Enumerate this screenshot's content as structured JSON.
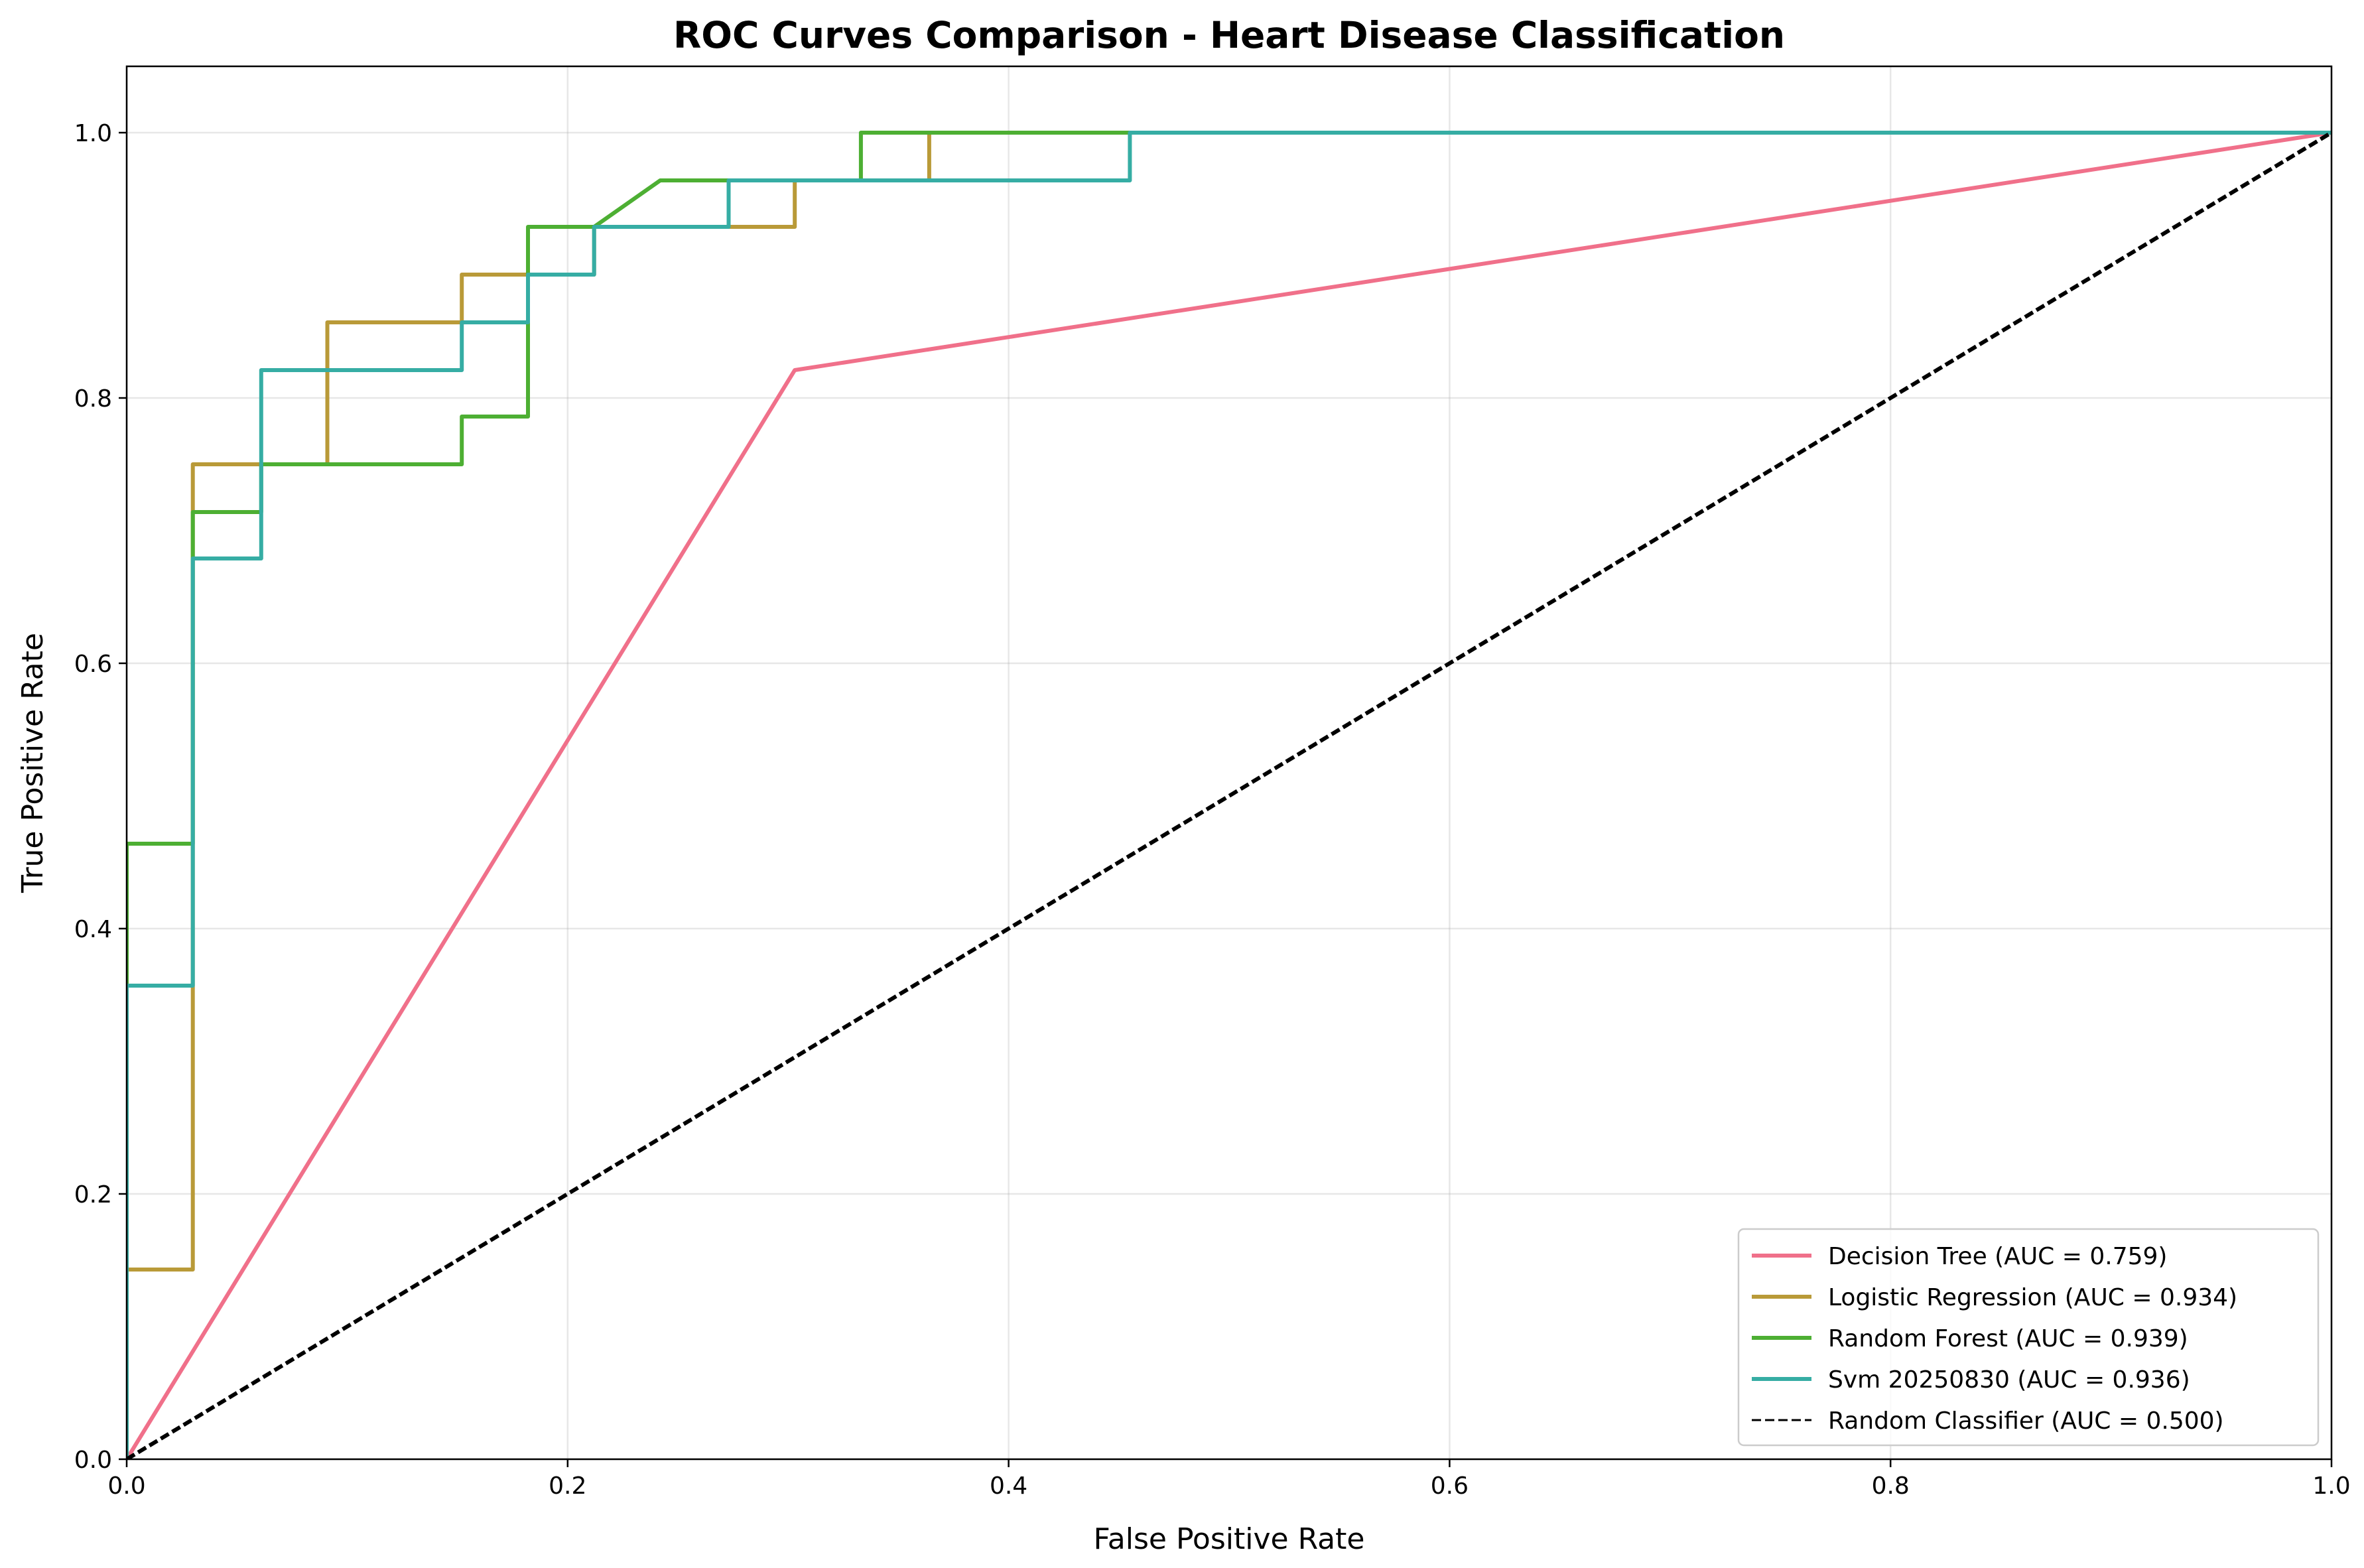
{
  "chart_data": {
    "type": "line",
    "title": "ROC Curves Comparison - Heart Disease Classification",
    "xlabel": "False Positive Rate",
    "ylabel": "True Positive Rate",
    "xlim": [
      0,
      1
    ],
    "ylim": [
      0,
      1.05
    ],
    "xticks": [
      0,
      0.2,
      0.4,
      0.6,
      0.8,
      1.0
    ],
    "xtick_labels": [
      "0.0",
      "0.2",
      "0.4",
      "0.6",
      "0.8",
      "1.0"
    ],
    "yticks": [
      0,
      0.2,
      0.4,
      0.6,
      0.8,
      1.0
    ],
    "ytick_labels": [
      "0.0",
      "0.2",
      "0.4",
      "0.6",
      "0.8",
      "1.0"
    ],
    "grid": true,
    "legend_position": "lower-right",
    "series": [
      {
        "name": "Decision Tree (AUC = 0.759)",
        "color": "#f0708a",
        "style": "solid",
        "x": [
          0,
          0.303,
          1.0
        ],
        "y": [
          0,
          0.821,
          1.0
        ]
      },
      {
        "name": "Logistic Regression (AUC = 0.934)",
        "color": "#b99a38",
        "style": "solid",
        "x": [
          0,
          0,
          0.03,
          0.03,
          0.03,
          0.091,
          0.091,
          0.152,
          0.152,
          0.182,
          0.182,
          0.212,
          0.212,
          0.273,
          0.273,
          0.303,
          0.303,
          0.364,
          0.364,
          1.0
        ],
        "y": [
          0,
          0.143,
          0.143,
          0.357,
          0.75,
          0.75,
          0.857,
          0.857,
          0.893,
          0.893,
          0.893,
          0.893,
          0.929,
          0.929,
          0.929,
          0.929,
          0.964,
          0.964,
          1.0,
          1.0
        ]
      },
      {
        "name": "Random Forest (AUC = 0.939)",
        "color": "#4daf33",
        "style": "solid",
        "x": [
          0,
          0,
          0.03,
          0.03,
          0.061,
          0.061,
          0.152,
          0.152,
          0.182,
          0.182,
          0.212,
          0.242,
          0.333,
          0.333,
          1.0
        ],
        "y": [
          0,
          0.464,
          0.464,
          0.714,
          0.714,
          0.75,
          0.75,
          0.786,
          0.786,
          0.929,
          0.929,
          0.964,
          0.964,
          1.0,
          1.0
        ]
      },
      {
        "name": "Svm 20250830 (AUC = 0.936)",
        "color": "#36ada4",
        "style": "solid",
        "x": [
          0,
          0,
          0.03,
          0.03,
          0.061,
          0.061,
          0.152,
          0.152,
          0.182,
          0.182,
          0.212,
          0.212,
          0.273,
          0.273,
          0.455,
          0.455,
          1.0
        ],
        "y": [
          0,
          0.357,
          0.357,
          0.679,
          0.679,
          0.821,
          0.821,
          0.857,
          0.857,
          0.893,
          0.893,
          0.929,
          0.929,
          0.964,
          0.964,
          1.0,
          1.0
        ]
      },
      {
        "name": "Random Classifier (AUC = 0.500)",
        "color": "#000000",
        "style": "dashed",
        "x": [
          0,
          1.0
        ],
        "y": [
          0,
          1.0
        ]
      }
    ]
  }
}
